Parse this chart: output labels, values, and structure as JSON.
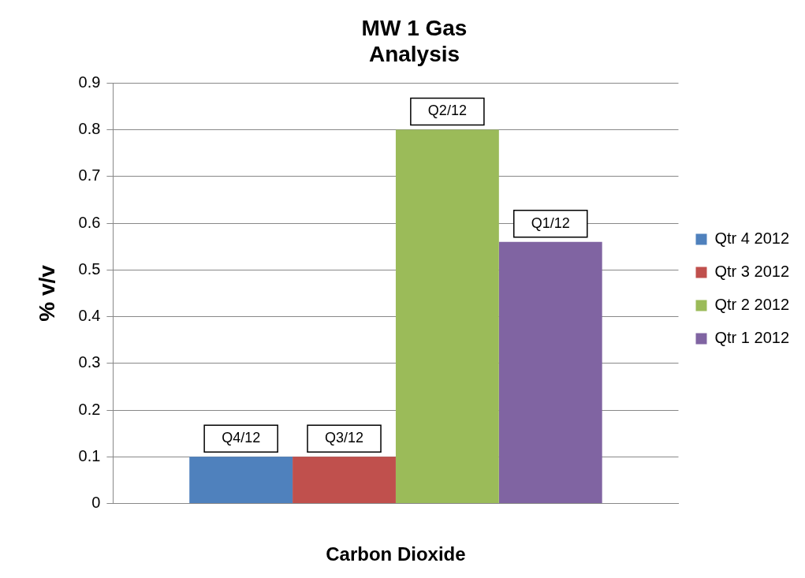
{
  "chart_data": {
    "type": "bar",
    "title": "MW 1 Gas Analysis",
    "xlabel": "Carbon Dioxide",
    "ylabel": "% v/v",
    "categories": [
      null
    ],
    "series": [
      {
        "name": "Qtr 4 2012",
        "color": "#4f81bd",
        "values": [
          0.1
        ],
        "value_labels": [
          "Q4/12"
        ]
      },
      {
        "name": "Qtr 3 2012",
        "color": "#c0504d",
        "values": [
          0.1
        ],
        "value_labels": [
          "Q3/12"
        ]
      },
      {
        "name": "Qtr 2 2012",
        "color": "#9bbb59",
        "values": [
          0.8
        ],
        "value_labels": [
          "Q2/12"
        ]
      },
      {
        "name": "Qtr 1 2012",
        "color": "#8064a2",
        "values": [
          0.56
        ],
        "value_labels": [
          "Q1/12"
        ]
      }
    ],
    "ylim": [
      0,
      0.9
    ],
    "yticks": [
      0,
      0.1,
      0.2,
      0.3,
      0.4,
      0.5,
      0.6,
      0.7,
      0.8,
      0.9
    ],
    "grid": "y",
    "legend": "right"
  }
}
